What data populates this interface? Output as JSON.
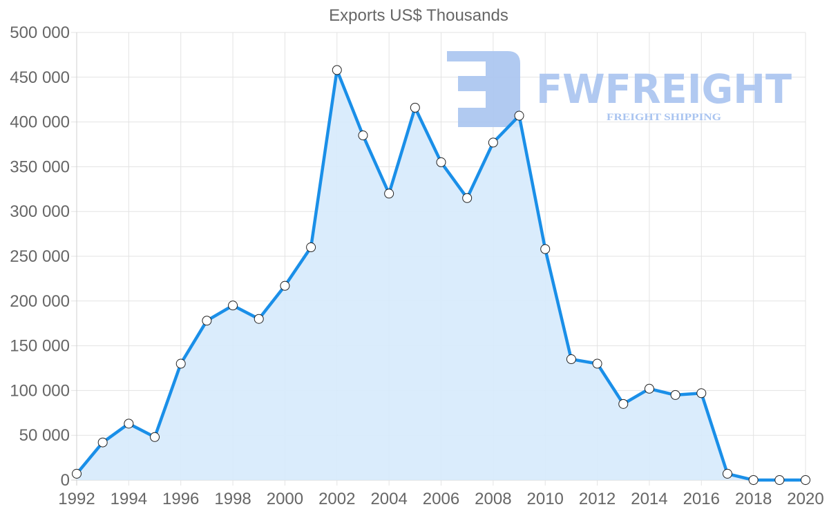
{
  "chart_data": {
    "type": "area",
    "title": "Exports US$ Thousands",
    "xlabel": "",
    "ylabel": "",
    "x": [
      1992,
      1993,
      1994,
      1995,
      1996,
      1997,
      1998,
      1999,
      2000,
      2001,
      2002,
      2003,
      2004,
      2005,
      2006,
      2007,
      2008,
      2009,
      2010,
      2011,
      2012,
      2013,
      2014,
      2015,
      2016,
      2017,
      2018,
      2019,
      2020
    ],
    "series": [
      {
        "name": "Exports US$ Thousands",
        "values": [
          7000,
          42000,
          63000,
          48000,
          130000,
          178000,
          195000,
          180000,
          217000,
          260000,
          458000,
          385000,
          320000,
          416000,
          355000,
          315000,
          377000,
          407000,
          258000,
          135000,
          130000,
          85000,
          102000,
          95000,
          97000,
          7000,
          0,
          0,
          0
        ],
        "color": "#1a8fe8",
        "fill": "#d6eafc"
      }
    ],
    "ylim": [
      0,
      500000
    ],
    "y_ticks": [
      "0",
      "50 000",
      "100 000",
      "150 000",
      "200 000",
      "250 000",
      "300 000",
      "350 000",
      "400 000",
      "450 000",
      "500 000"
    ],
    "x_ticks": [
      "1992",
      "1994",
      "1996",
      "1998",
      "2000",
      "2002",
      "2004",
      "2006",
      "2008",
      "2010",
      "2012",
      "2014",
      "2016",
      "2018",
      "2020"
    ],
    "grid": true,
    "legend": "none"
  },
  "watermark": {
    "brand": "FWFREIGHT",
    "tagline": "FREIGHT SHIPPING"
  }
}
